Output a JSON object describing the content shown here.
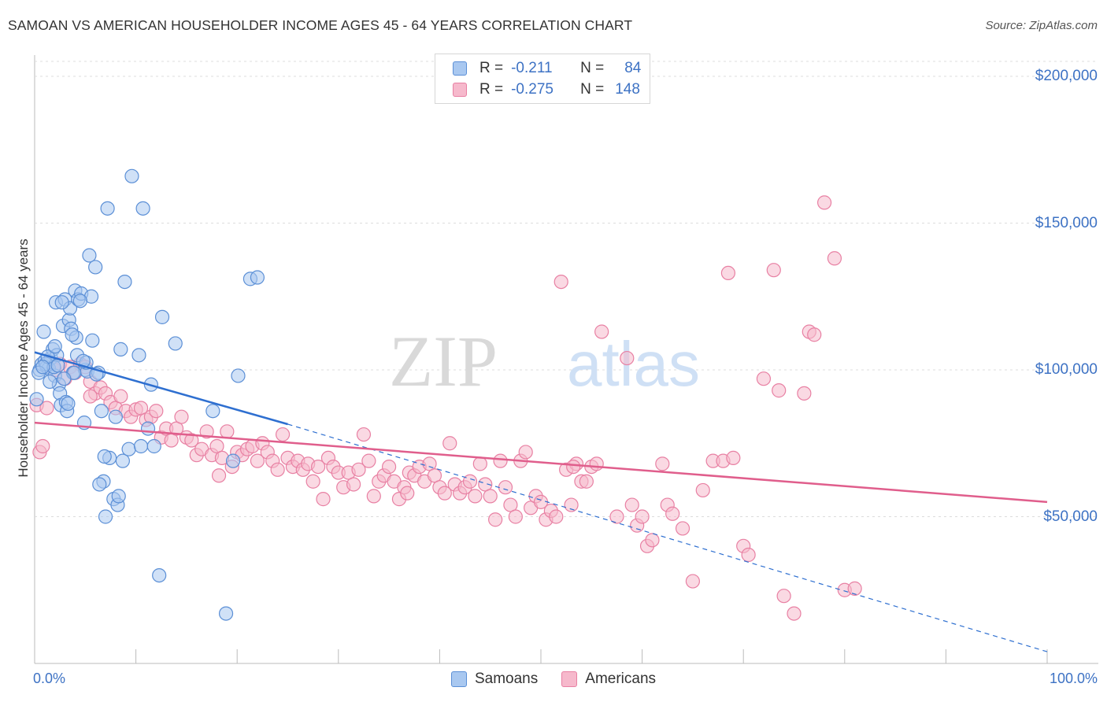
{
  "title": "SAMOAN VS AMERICAN HOUSEHOLDER INCOME AGES 45 - 64 YEARS CORRELATION CHART",
  "source": "Source: ZipAtlas.com",
  "watermark": {
    "zip": "ZIP",
    "atlas": "atlas"
  },
  "colors": {
    "samoans_fill": "#a9c8f0",
    "samoans_stroke": "#5b8fd6",
    "samoans_line": "#2e6fd0",
    "americans_fill": "#f6b9cc",
    "americans_stroke": "#e880a3",
    "americans_line": "#e05e8c",
    "grid": "#dcdcdc",
    "tick_text": "#3d72c4"
  },
  "legend_top": {
    "rows": [
      {
        "r_label": "R =",
        "r_value": "-0.211",
        "n_label": "N =",
        "n_value": "84"
      },
      {
        "r_label": "R =",
        "r_value": "-0.275",
        "n_label": "N =",
        "n_value": "148"
      }
    ]
  },
  "legend_bottom": [
    "Samoans",
    "Americans"
  ],
  "chart_data": {
    "type": "scatter",
    "title": "SAMOAN VS AMERICAN HOUSEHOLDER INCOME AGES 45 - 64 YEARS CORRELATION CHART",
    "xlabel": "",
    "ylabel": "Householder Income Ages 45 - 64 years",
    "xlim": [
      0,
      100
    ],
    "ylim": [
      0,
      210000
    ],
    "x_tick_labels": [
      "0.0%",
      "100.0%"
    ],
    "y_ticks": [
      50000,
      100000,
      150000,
      200000
    ],
    "y_tick_labels": [
      "$50,000",
      "$100,000",
      "$150,000",
      "$200,000"
    ],
    "grid": true,
    "legend_placement": "top-center and bottom",
    "series": [
      {
        "name": "Samoans",
        "r": -0.211,
        "n": 84,
        "trend": {
          "x0": 0,
          "y0": 106000,
          "x1": 25,
          "y1": 81500,
          "dashed_to_x": 100,
          "dashed_y1": 4000
        },
        "points": [
          [
            0.2,
            90000
          ],
          [
            0.5,
            100000
          ],
          [
            0.7,
            102000
          ],
          [
            1.0,
            103000
          ],
          [
            1.2,
            101000
          ],
          [
            1.4,
            100500
          ],
          [
            1.6,
            104000
          ],
          [
            1.8,
            107000
          ],
          [
            2.0,
            98000
          ],
          [
            2.2,
            105000
          ],
          [
            0.9,
            113000
          ],
          [
            2.1,
            123000
          ],
          [
            2.4,
            95000
          ],
          [
            2.5,
            92000
          ],
          [
            2.6,
            88000
          ],
          [
            2.8,
            115000
          ],
          [
            3.0,
            124000
          ],
          [
            3.1,
            89000
          ],
          [
            3.2,
            86000
          ],
          [
            3.4,
            117000
          ],
          [
            3.5,
            121000
          ],
          [
            3.6,
            114000
          ],
          [
            3.8,
            99000
          ],
          [
            4.0,
            127000
          ],
          [
            4.1,
            111000
          ],
          [
            4.3,
            124000
          ],
          [
            4.6,
            126000
          ],
          [
            4.9,
            82000
          ],
          [
            5.0,
            100000
          ],
          [
            5.2,
            99500
          ],
          [
            5.4,
            139000
          ],
          [
            5.6,
            125000
          ],
          [
            6.0,
            135000
          ],
          [
            6.3,
            99000
          ],
          [
            6.6,
            86000
          ],
          [
            6.8,
            62000
          ],
          [
            7.0,
            50000
          ],
          [
            7.2,
            155000
          ],
          [
            7.4,
            70000
          ],
          [
            7.8,
            56000
          ],
          [
            8.0,
            84000
          ],
          [
            8.2,
            54000
          ],
          [
            8.5,
            107000
          ],
          [
            8.7,
            69000
          ],
          [
            8.9,
            130000
          ],
          [
            9.3,
            73000
          ],
          [
            9.6,
            166000
          ],
          [
            10.3,
            105000
          ],
          [
            10.5,
            74000
          ],
          [
            10.7,
            155000
          ],
          [
            11.2,
            80000
          ],
          [
            11.5,
            95000
          ],
          [
            11.8,
            74000
          ],
          [
            12.3,
            30000
          ],
          [
            12.6,
            118000
          ],
          [
            13.9,
            109000
          ],
          [
            17.6,
            86000
          ],
          [
            18.9,
            17000
          ],
          [
            19.6,
            69000
          ],
          [
            20.1,
            98000
          ],
          [
            21.3,
            131000
          ],
          [
            22.0,
            131500
          ],
          [
            1.1,
            102000
          ],
          [
            1.9,
            101000
          ],
          [
            2.7,
            123000
          ],
          [
            4.5,
            123500
          ],
          [
            5.7,
            110000
          ],
          [
            3.9,
            99000
          ],
          [
            6.4,
            61000
          ],
          [
            1.5,
            96000
          ],
          [
            0.4,
            99000
          ],
          [
            2.3,
            101500
          ],
          [
            3.3,
            88500
          ],
          [
            4.2,
            105000
          ],
          [
            5.1,
            102500
          ],
          [
            6.9,
            70500
          ],
          [
            2.9,
            97000
          ],
          [
            1.3,
            104500
          ],
          [
            3.7,
            112000
          ],
          [
            8.3,
            57000
          ],
          [
            0.8,
            101000
          ],
          [
            4.8,
            103000
          ],
          [
            6.1,
            98500
          ],
          [
            2.0,
            108000
          ]
        ]
      },
      {
        "name": "Americans",
        "r": -0.275,
        "n": 148,
        "trend": {
          "x0": 0,
          "y0": 82000,
          "x1": 100,
          "y1": 55000
        },
        "points": [
          [
            0.2,
            88000
          ],
          [
            0.5,
            72000
          ],
          [
            0.8,
            74000
          ],
          [
            1.2,
            87000
          ],
          [
            2.0,
            100000
          ],
          [
            2.5,
            102000
          ],
          [
            3.0,
            97000
          ],
          [
            3.5,
            101000
          ],
          [
            4.0,
            99000
          ],
          [
            4.5,
            102000
          ],
          [
            5.0,
            101000
          ],
          [
            5.5,
            96000
          ],
          [
            6.0,
            92000
          ],
          [
            6.5,
            94000
          ],
          [
            7.0,
            92000
          ],
          [
            7.5,
            89000
          ],
          [
            8.0,
            87000
          ],
          [
            8.5,
            91000
          ],
          [
            9.0,
            86000
          ],
          [
            9.5,
            84000
          ],
          [
            10.0,
            86500
          ],
          [
            10.5,
            87000
          ],
          [
            11.0,
            83000
          ],
          [
            11.5,
            84000
          ],
          [
            12.0,
            86000
          ],
          [
            12.5,
            77000
          ],
          [
            13.0,
            80000
          ],
          [
            13.5,
            76000
          ],
          [
            14.0,
            80000
          ],
          [
            14.5,
            84000
          ],
          [
            15.0,
            77000
          ],
          [
            15.5,
            76000
          ],
          [
            16.0,
            71000
          ],
          [
            16.5,
            73000
          ],
          [
            17.0,
            79000
          ],
          [
            17.5,
            71000
          ],
          [
            18.0,
            74000
          ],
          [
            18.5,
            70000
          ],
          [
            19.0,
            79000
          ],
          [
            19.5,
            67000
          ],
          [
            20.0,
            72000
          ],
          [
            20.5,
            71000
          ],
          [
            21.0,
            73000
          ],
          [
            21.5,
            74000
          ],
          [
            22.0,
            69000
          ],
          [
            22.5,
            75000
          ],
          [
            23.0,
            72000
          ],
          [
            23.5,
            69000
          ],
          [
            24.0,
            66000
          ],
          [
            24.5,
            78000
          ],
          [
            25.0,
            70000
          ],
          [
            25.5,
            67000
          ],
          [
            26.0,
            69000
          ],
          [
            26.5,
            66000
          ],
          [
            27.0,
            68000
          ],
          [
            27.5,
            62000
          ],
          [
            28.0,
            67000
          ],
          [
            28.5,
            56000
          ],
          [
            29.0,
            70000
          ],
          [
            29.5,
            67000
          ],
          [
            30.0,
            65000
          ],
          [
            30.5,
            60000
          ],
          [
            31.0,
            65000
          ],
          [
            31.5,
            61000
          ],
          [
            32.0,
            66000
          ],
          [
            32.5,
            78000
          ],
          [
            33.0,
            69000
          ],
          [
            33.5,
            57000
          ],
          [
            34.0,
            62000
          ],
          [
            34.5,
            64000
          ],
          [
            35.0,
            67000
          ],
          [
            35.5,
            62000
          ],
          [
            36.0,
            56000
          ],
          [
            36.5,
            60000
          ],
          [
            37.0,
            65000
          ],
          [
            37.5,
            64000
          ],
          [
            38.0,
            67000
          ],
          [
            38.5,
            62000
          ],
          [
            39.0,
            68000
          ],
          [
            39.5,
            64000
          ],
          [
            40.0,
            60000
          ],
          [
            40.5,
            58000
          ],
          [
            41.0,
            75000
          ],
          [
            41.5,
            61000
          ],
          [
            42.0,
            58000
          ],
          [
            42.5,
            60000
          ],
          [
            43.0,
            62000
          ],
          [
            43.5,
            57000
          ],
          [
            44.0,
            68000
          ],
          [
            44.5,
            61000
          ],
          [
            45.0,
            57000
          ],
          [
            45.5,
            49000
          ],
          [
            46.0,
            69000
          ],
          [
            46.5,
            60000
          ],
          [
            47.0,
            54000
          ],
          [
            47.5,
            50000
          ],
          [
            48.0,
            69000
          ],
          [
            48.5,
            72000
          ],
          [
            49.0,
            53000
          ],
          [
            49.5,
            57000
          ],
          [
            50.0,
            55000
          ],
          [
            50.5,
            49000
          ],
          [
            51.0,
            52000
          ],
          [
            51.5,
            50000
          ],
          [
            52.0,
            130000
          ],
          [
            52.5,
            66000
          ],
          [
            53.0,
            54000
          ],
          [
            53.5,
            68000
          ],
          [
            54.0,
            62000
          ],
          [
            54.5,
            62000
          ],
          [
            55.0,
            67000
          ],
          [
            55.5,
            68000
          ],
          [
            56.0,
            113000
          ],
          [
            57.5,
            50000
          ],
          [
            58.5,
            104000
          ],
          [
            59.0,
            54000
          ],
          [
            59.5,
            47000
          ],
          [
            60.0,
            50000
          ],
          [
            60.5,
            40000
          ],
          [
            61.0,
            42000
          ],
          [
            62.0,
            68000
          ],
          [
            62.5,
            54000
          ],
          [
            63.0,
            51000
          ],
          [
            64.0,
            46000
          ],
          [
            65.0,
            28000
          ],
          [
            66.0,
            59000
          ],
          [
            67.0,
            69000
          ],
          [
            68.0,
            69000
          ],
          [
            68.5,
            133000
          ],
          [
            69.0,
            70000
          ],
          [
            70.0,
            40000
          ],
          [
            70.5,
            37000
          ],
          [
            72.0,
            97000
          ],
          [
            73.0,
            134000
          ],
          [
            73.5,
            93000
          ],
          [
            74.0,
            23000
          ],
          [
            75.0,
            17000
          ],
          [
            76.0,
            92000
          ],
          [
            76.5,
            113000
          ],
          [
            77.0,
            112000
          ],
          [
            78.0,
            157000
          ],
          [
            79.0,
            138000
          ],
          [
            80.0,
            25000
          ],
          [
            81.0,
            25500
          ],
          [
            5.5,
            91000
          ],
          [
            18.2,
            64000
          ],
          [
            36.8,
            58000
          ],
          [
            53.2,
            67000
          ]
        ]
      }
    ]
  }
}
